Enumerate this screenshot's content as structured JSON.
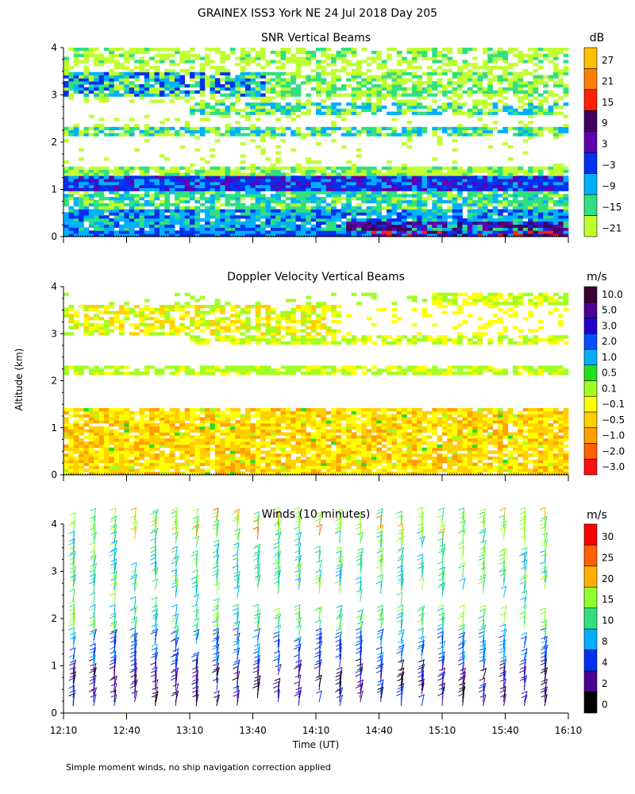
{
  "figure": {
    "title": "GRAINEX ISS3 York NE  24 Jul 2018 Day 205",
    "ylabel": "Altitude (km)",
    "xlabel": "Time (UT)",
    "footnote": "Simple moment winds, no ship navigation correction applied"
  },
  "chart_data": [
    {
      "type": "heatmap",
      "title": "SNR Vertical Beams",
      "xlabel": "Time (UT)",
      "ylabel": "Altitude (km)",
      "x_ticks": [
        "12:10",
        "12:40",
        "13:10",
        "13:40",
        "14:10",
        "14:40",
        "15:10",
        "15:40",
        "16:10"
      ],
      "xlim_hours": [
        12.1667,
        16.1667
      ],
      "y_ticks": [
        "0",
        "1",
        "2",
        "3",
        "4"
      ],
      "ylim": [
        0,
        4
      ],
      "colorbar": {
        "unit": "dB",
        "labels": [
          "27",
          "21",
          "15",
          "9",
          "3",
          "−3",
          "−9",
          "−15",
          "−21"
        ],
        "colors": [
          "#ffc000",
          "#ff8000",
          "#ff2000",
          "#400060",
          "#6000b0",
          "#0030f0",
          "#00b0ff",
          "#30e080",
          "#c0ff30"
        ]
      },
      "layers": [
        {
          "altitude_km": [
            0.0,
            0.15
          ],
          "snr_db_approx": "3 to 15 (after ~14:10)"
        },
        {
          "altitude_km": [
            0.15,
            0.6
          ],
          "snr_db_approx": "-9 to -3"
        },
        {
          "altitude_km": [
            0.6,
            1.0
          ],
          "snr_db_approx": "-15"
        },
        {
          "altitude_km": [
            1.0,
            1.3
          ],
          "snr_db_approx": "-3"
        },
        {
          "altitude_km": [
            1.3,
            1.5
          ],
          "snr_db_approx": "-15 to -21"
        },
        {
          "altitude_km": [
            2.1,
            2.3
          ],
          "snr_db_approx": "-15"
        },
        {
          "altitude_km": [
            2.6,
            2.8
          ],
          "snr_db_approx": "-15 to -9"
        },
        {
          "altitude_km": [
            3.0,
            3.5
          ],
          "snr_db_approx": "-15 to -3 (12:10–13:40)"
        },
        {
          "altitude_km": [
            3.6,
            4.0
          ],
          "snr_db_approx": "-21 to -15"
        }
      ]
    },
    {
      "type": "heatmap",
      "title": "Doppler Velocity Vertical Beams",
      "xlabel": "Time (UT)",
      "ylabel": "Altitude (km)",
      "y_ticks": [
        "0",
        "1",
        "2",
        "3",
        "4"
      ],
      "ylim": [
        0,
        4
      ],
      "colorbar": {
        "unit": "m/s",
        "labels": [
          "10.0",
          "5.0",
          "3.0",
          "2.0",
          "1.0",
          "0.5",
          "0.1",
          "−0.1",
          "−0.5",
          "−1.0",
          "−2.0",
          "−3.0"
        ],
        "colors": [
          "#3a0030",
          "#4a0090",
          "#2000d0",
          "#0050ff",
          "#00b0ff",
          "#20e020",
          "#a0ff20",
          "#ffff00",
          "#ffd000",
          "#ffa000",
          "#ff6000",
          "#ff1010"
        ]
      },
      "layers": [
        {
          "altitude_km": [
            0.0,
            1.4
          ],
          "velocity_ms_approx": "-0.5 to 0.1"
        },
        {
          "altitude_km": [
            2.1,
            2.3
          ],
          "velocity_ms_approx": "-0.1 to 0.1"
        },
        {
          "altitude_km": [
            2.8,
            3.0
          ],
          "velocity_ms_approx": "-0.1"
        },
        {
          "altitude_km": [
            3.1,
            3.6
          ],
          "velocity_ms_approx": "-0.5 to 0.1"
        },
        {
          "altitude_km": [
            3.6,
            3.9
          ],
          "velocity_ms_approx": "-0.1 (after 15:10)"
        }
      ]
    },
    {
      "type": "wind_barbs",
      "title": "Winds (10 minutes)",
      "xlabel": "Time (UT)",
      "ylabel": "Altitude (km)",
      "x_ticks": [
        "12:10",
        "12:40",
        "13:10",
        "13:40",
        "14:10",
        "14:40",
        "15:10",
        "15:40",
        "16:10"
      ],
      "y_ticks": [
        "0",
        "1",
        "2",
        "3",
        "4"
      ],
      "ylim": [
        0,
        4
      ],
      "interval_minutes": 10,
      "colorbar": {
        "unit": "m/s",
        "labels": [
          "30",
          "25",
          "20",
          "15",
          "10",
          "8",
          "4",
          "2",
          "0"
        ],
        "colors": [
          "#ff0000",
          "#ff6000",
          "#ffb000",
          "#90ff30",
          "#30e080",
          "#00b0ff",
          "#0030f0",
          "#4a0090",
          "#000000"
        ]
      },
      "speed_profile": [
        {
          "altitude_km": [
            0.0,
            1.0
          ],
          "speed_ms_approx": "2 to 8"
        },
        {
          "altitude_km": [
            1.0,
            2.0
          ],
          "speed_ms_approx": "8 to 15"
        },
        {
          "altitude_km": [
            2.0,
            3.0
          ],
          "speed_ms_approx": "10 to 15"
        },
        {
          "altitude_km": [
            3.0,
            4.2
          ],
          "speed_ms_approx": "15 to 25"
        }
      ]
    }
  ]
}
